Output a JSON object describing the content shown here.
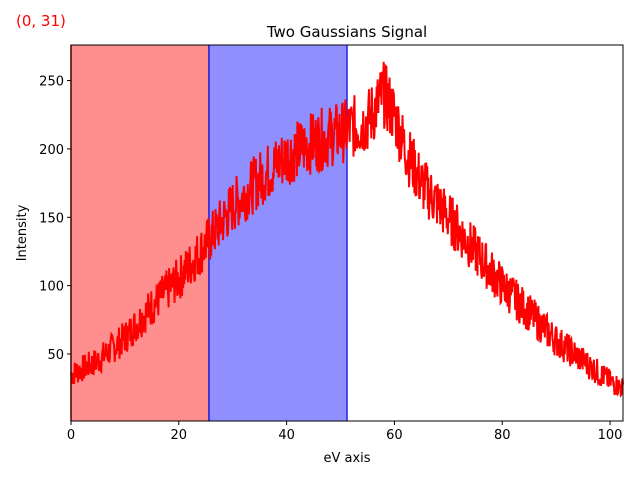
{
  "coord_readout": "(0, 31)",
  "chart_data": {
    "type": "line",
    "title": "Two Gaussians Signal",
    "xlabel": "eV axis",
    "ylabel": "Intensity",
    "xlim": [
      0,
      102.4
    ],
    "ylim": [
      1,
      276
    ],
    "xticks": [
      0,
      20,
      40,
      60,
      80,
      100
    ],
    "yticks": [
      50,
      100,
      150,
      200,
      250
    ],
    "grid": false,
    "legend": null,
    "line_color": "#ff0000",
    "spans": [
      {
        "name": "red-span",
        "x0": 0,
        "x1": 25.6,
        "fill": "#ff8f8f",
        "edge": "#cc0000"
      },
      {
        "name": "blue-span",
        "x0": 25.6,
        "x1": 51.2,
        "fill": "#8f8fff",
        "edge": "#2222ee"
      }
    ],
    "series": [
      {
        "name": "signal",
        "x": [
          0,
          5,
          10,
          15,
          20,
          25,
          30,
          35,
          40,
          45,
          50,
          55,
          58,
          60,
          62,
          65,
          70,
          75,
          80,
          85,
          90,
          95,
          100,
          102.4
        ],
        "values": [
          35,
          45,
          62,
          85,
          105,
          130,
          158,
          178,
          195,
          205,
          212,
          220,
          240,
          225,
          200,
          175,
          150,
          125,
          100,
          80,
          60,
          45,
          30,
          25
        ]
      }
    ]
  }
}
